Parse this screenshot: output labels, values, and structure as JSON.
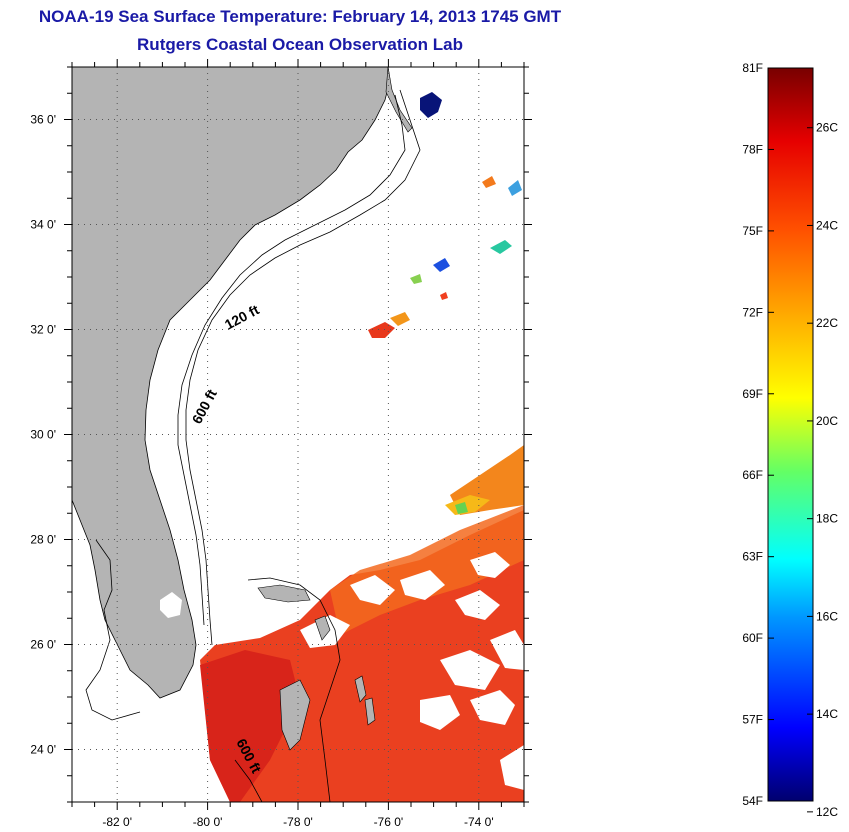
{
  "title": "NOAA-19 Sea Surface Temperature:  February 14, 2013 1745 GMT",
  "subtitle": "Rutgers Coastal Ocean Observation Lab",
  "map": {
    "lon_range": [
      -83,
      -73
    ],
    "lat_range": [
      23,
      37
    ],
    "lat_ticks": [
      {
        "value": 36,
        "label": "36 0'"
      },
      {
        "value": 34,
        "label": "34 0'"
      },
      {
        "value": 32,
        "label": "32 0'"
      },
      {
        "value": 30,
        "label": "30 0'"
      },
      {
        "value": 28,
        "label": "28 0'"
      },
      {
        "value": 26,
        "label": "26 0'"
      },
      {
        "value": 24,
        "label": "24 0'"
      }
    ],
    "lon_ticks": [
      {
        "value": -82,
        "label": "-82 0'"
      },
      {
        "value": -80,
        "label": "-80 0'"
      },
      {
        "value": -78,
        "label": "-78 0'"
      },
      {
        "value": -76,
        "label": "-76 0'"
      },
      {
        "value": -74,
        "label": "-74 0'"
      }
    ],
    "contour_labels": [
      "120 ft",
      "600 ft",
      "600 ft"
    ],
    "grid": "dotted",
    "colors": {
      "land": "#b4b4b4",
      "ocean_no_data": "#ffffff",
      "warm_sst": "#e8381c"
    }
  },
  "colorbar": {
    "fahrenheit_labels": [
      "81F",
      "78F",
      "75F",
      "72F",
      "69F",
      "66F",
      "63F",
      "60F",
      "57F",
      "54F"
    ],
    "celsius_labels": [
      "26C",
      "24C",
      "22C",
      "20C",
      "18C",
      "16C",
      "14C",
      "12C"
    ],
    "range_f": [
      54,
      81
    ],
    "colors": [
      "#000078",
      "#0000ff",
      "#0096ff",
      "#00ffff",
      "#64ff64",
      "#ffff00",
      "#ffb400",
      "#ff5000",
      "#e60000",
      "#780000"
    ]
  }
}
